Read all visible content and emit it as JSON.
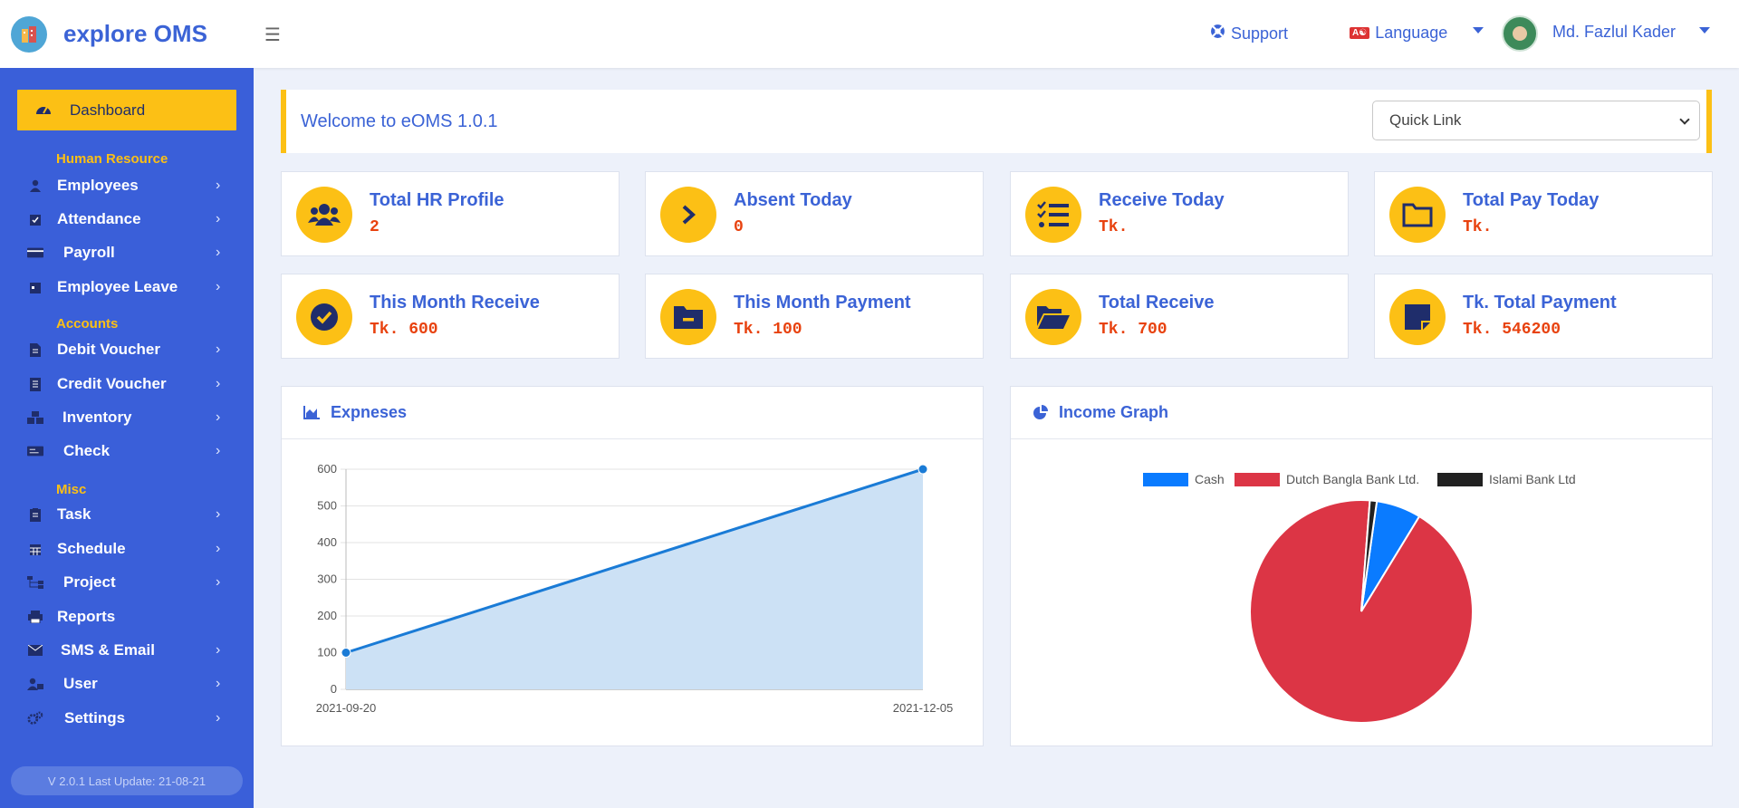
{
  "topbar": {
    "brand": "explore OMS",
    "logo_icon": "building-icon",
    "support_label": "Support",
    "language_label": "Language",
    "language_flag": "A☯",
    "user_name": "Md. Fazlul Kader"
  },
  "sidebar": {
    "dashboard_label": "Dashboard",
    "sections": {
      "hr": "Human Resource",
      "accounts": "Accounts",
      "misc": "Misc"
    },
    "items": [
      {
        "label": "Employees",
        "icon": "user-icon",
        "chevron": true
      },
      {
        "label": "Attendance",
        "icon": "calendar-check-icon",
        "chevron": true
      },
      {
        "label": "Payroll",
        "icon": "credit-card-icon",
        "chevron": true
      },
      {
        "label": "Employee Leave",
        "icon": "calendar-icon",
        "chevron": true
      },
      {
        "label": "Debit Voucher",
        "icon": "document-icon",
        "chevron": true
      },
      {
        "label": "Credit Voucher",
        "icon": "receipt-icon",
        "chevron": true
      },
      {
        "label": "Inventory",
        "icon": "boxes-icon",
        "chevron": true
      },
      {
        "label": "Check",
        "icon": "money-check-icon",
        "chevron": true
      },
      {
        "label": "Task",
        "icon": "clipboard-icon",
        "chevron": true
      },
      {
        "label": "Schedule",
        "icon": "calendar-grid-icon",
        "chevron": true
      },
      {
        "label": "Project",
        "icon": "sitemap-icon",
        "chevron": true
      },
      {
        "label": "Reports",
        "icon": "print-icon",
        "chevron": false
      },
      {
        "label": "SMS & Email",
        "icon": "envelope-icon",
        "chevron": true
      },
      {
        "label": "User",
        "icon": "user-lock-icon",
        "chevron": true
      },
      {
        "label": "Settings",
        "icon": "cogs-icon",
        "chevron": true
      }
    ],
    "version": "V 2.0.1 Last Update: 21-08-21"
  },
  "welcome": {
    "title": "Welcome to eOMS 1.0.1",
    "quick_link": "Quick Link"
  },
  "cards": [
    {
      "title": "Total HR Profile",
      "value": "2",
      "icon": "users-icon"
    },
    {
      "title": "Absent Today",
      "value": "0",
      "icon": "chevron-right-icon"
    },
    {
      "title": "Receive Today",
      "value": "Tk.",
      "icon": "tasks-icon"
    },
    {
      "title": "Total Pay Today",
      "value": "Tk.",
      "icon": "folder-icon"
    },
    {
      "title": "This Month Receive",
      "value": "Tk. 600",
      "icon": "check-circle-icon"
    },
    {
      "title": "This Month Payment",
      "value": "Tk. 100",
      "icon": "folder-minus-icon"
    },
    {
      "title": "Total Receive",
      "value": "Tk. 700",
      "icon": "folder-open-icon"
    },
    {
      "title": "Tk. Total Payment",
      "value": "Tk. 546200",
      "icon": "sticky-note-icon"
    }
  ],
  "expenses_panel": {
    "title": "Expneses",
    "icon": "area-chart-icon"
  },
  "income_panel": {
    "title": "Income Graph",
    "icon": "pie-chart-icon"
  },
  "chart_data": [
    {
      "type": "area",
      "title": "Expneses",
      "x": [
        "2021-09-20",
        "2021-12-05"
      ],
      "values": [
        100,
        600
      ],
      "ylim": [
        0,
        600
      ],
      "yticks": [
        0,
        100,
        200,
        300,
        400,
        500,
        600
      ],
      "color": "#1a7bd6",
      "fill": "#cce1f5",
      "grid": true
    },
    {
      "type": "pie",
      "title": "Income Graph",
      "labels": [
        "Cash",
        "Dutch Bangla Bank Ltd.",
        "Islami Bank Ltd"
      ],
      "values": [
        6.5,
        92.5,
        1.0
      ],
      "colors": [
        "#0a7bff",
        "#dc3545",
        "#212121"
      ],
      "legend": "top"
    }
  ]
}
